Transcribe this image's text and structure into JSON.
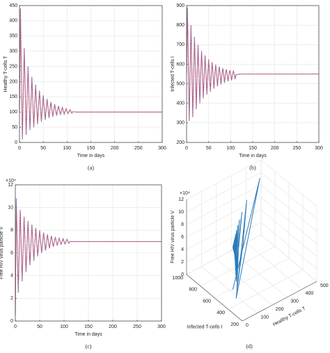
{
  "chart_data": [
    {
      "type": "line",
      "caption": "(a)",
      "xlabel": "Time in days",
      "ylabel": "Healthy T-cells T",
      "color": "#e0393a",
      "overlay_color": "#6f8fe0",
      "x": [
        0,
        2,
        4,
        6,
        8,
        10,
        12,
        14,
        16,
        18,
        20,
        22,
        24,
        26,
        28,
        30,
        32,
        34,
        36,
        38,
        40,
        42,
        44,
        46,
        48,
        50,
        52,
        54,
        56,
        58,
        60,
        62,
        64,
        66,
        68,
        70,
        72,
        74,
        76,
        78,
        80,
        82,
        84,
        86,
        88,
        90,
        92,
        94,
        96,
        98,
        100,
        102,
        104,
        106,
        108,
        110,
        112,
        120,
        150,
        200,
        250,
        300
      ],
      "values": [
        100,
        440,
        225,
        10,
        160,
        310,
        175,
        25,
        140,
        250,
        145,
        40,
        128,
        215,
        132,
        50,
        120,
        190,
        125,
        60,
        115,
        170,
        119,
        68,
        112,
        155,
        114,
        74,
        109,
        143,
        112,
        80,
        107,
        133,
        109,
        85,
        106,
        126,
        107,
        88,
        104,
        120,
        106,
        91,
        103,
        115,
        104,
        93,
        102,
        111,
        103,
        95,
        101,
        108,
        102,
        96,
        101,
        100,
        100,
        100,
        100,
        100
      ],
      "xlim": [
        0,
        300
      ],
      "xticks": [
        0,
        50,
        100,
        150,
        200,
        250,
        300
      ],
      "ylim": [
        0,
        450
      ],
      "yticks": [
        0,
        50,
        100,
        150,
        200,
        250,
        300,
        350,
        400,
        450
      ],
      "grid": true
    },
    {
      "type": "line",
      "caption": "(b)",
      "xlabel": "Time in days",
      "ylabel": "Infected T-cells I",
      "color": "#e0393a",
      "overlay_color": "#6f8fe0",
      "x": [
        0,
        2,
        4,
        6,
        8,
        10,
        12,
        14,
        16,
        18,
        20,
        22,
        24,
        26,
        28,
        30,
        32,
        34,
        36,
        38,
        40,
        42,
        44,
        46,
        48,
        50,
        52,
        54,
        56,
        58,
        60,
        62,
        64,
        66,
        68,
        70,
        72,
        74,
        76,
        78,
        80,
        82,
        84,
        86,
        88,
        90,
        92,
        94,
        96,
        98,
        100,
        102,
        104,
        106,
        108,
        110,
        112,
        120,
        150,
        200,
        250,
        300
      ],
      "values": [
        550,
        890,
        600,
        310,
        555,
        800,
        565,
        330,
        555,
        740,
        570,
        370,
        550,
        700,
        563,
        400,
        548,
        670,
        558,
        425,
        545,
        645,
        553,
        445,
        543,
        625,
        550,
        460,
        543,
        610,
        550,
        475,
        542,
        598,
        550,
        487,
        542,
        588,
        550,
        496,
        542,
        580,
        550,
        505,
        543,
        574,
        550,
        512,
        544,
        569,
        550,
        518,
        545,
        565,
        550,
        523,
        546,
        550,
        550,
        550,
        550,
        550
      ],
      "xlim": [
        0,
        300
      ],
      "xticks": [
        0,
        50,
        100,
        150,
        200,
        250,
        300
      ],
      "ylim": [
        200,
        900
      ],
      "yticks": [
        200,
        300,
        400,
        500,
        600,
        700,
        800,
        900
      ],
      "grid": true
    },
    {
      "type": "line",
      "caption": "(c)",
      "xlabel": "Time in days",
      "ylabel": "Free HIV virus particle V",
      "yscale_label": "×10⁴",
      "color": "#e0393a",
      "overlay_color": "#6f8fe0",
      "x": [
        0,
        2,
        4,
        6,
        8,
        10,
        12,
        14,
        16,
        18,
        20,
        22,
        24,
        26,
        28,
        30,
        32,
        34,
        36,
        38,
        40,
        42,
        44,
        46,
        48,
        50,
        52,
        54,
        56,
        58,
        60,
        62,
        64,
        66,
        68,
        70,
        72,
        74,
        76,
        78,
        80,
        82,
        84,
        86,
        88,
        90,
        92,
        94,
        96,
        98,
        100,
        102,
        104,
        106,
        108,
        110,
        112,
        120,
        150,
        200,
        250,
        300
      ],
      "values": [
        0.5,
        10.8,
        6.6,
        2.5,
        6.1,
        9.8,
        6.6,
        3.5,
        6.4,
        9.2,
        6.8,
        4.3,
        6.5,
        8.8,
        6.9,
        4.9,
        6.7,
        8.5,
        6.9,
        5.3,
        6.8,
        8.2,
        7.0,
        5.7,
        6.9,
        8.0,
        7.0,
        6.0,
        6.9,
        7.8,
        7.0,
        6.2,
        6.9,
        7.65,
        7.0,
        6.4,
        7.0,
        7.5,
        7.0,
        6.55,
        7.0,
        7.4,
        7.0,
        6.65,
        7.0,
        7.3,
        7.0,
        6.75,
        7.0,
        7.25,
        7.0,
        6.8,
        7.0,
        7.2,
        7.0,
        6.85,
        7.0,
        7,
        7,
        7,
        7,
        7
      ],
      "xlim": [
        0,
        300
      ],
      "xticks": [
        0,
        50,
        100,
        150,
        200,
        250,
        300
      ],
      "ylim": [
        0,
        12
      ],
      "yticks": [
        0,
        2,
        4,
        6,
        8,
        10,
        12
      ],
      "grid": true
    },
    {
      "type": "line3d",
      "caption": "(d)",
      "xlabel": "Healthy T-cells T",
      "ylabel": "Infected T-cells I",
      "zlabel": "Free HIV virus particle V",
      "zscale_label": "×10⁴",
      "color": "#2b7bba",
      "xlim": [
        0,
        500
      ],
      "xticks": [
        0,
        100,
        200,
        300,
        400,
        500
      ],
      "ylim": [
        200,
        1000
      ],
      "yticks": [
        200,
        400,
        600,
        800,
        1000
      ],
      "zlim": [
        0,
        12
      ],
      "zticks": [
        0,
        2,
        4,
        6,
        8,
        10,
        12
      ],
      "grid": true
    }
  ]
}
